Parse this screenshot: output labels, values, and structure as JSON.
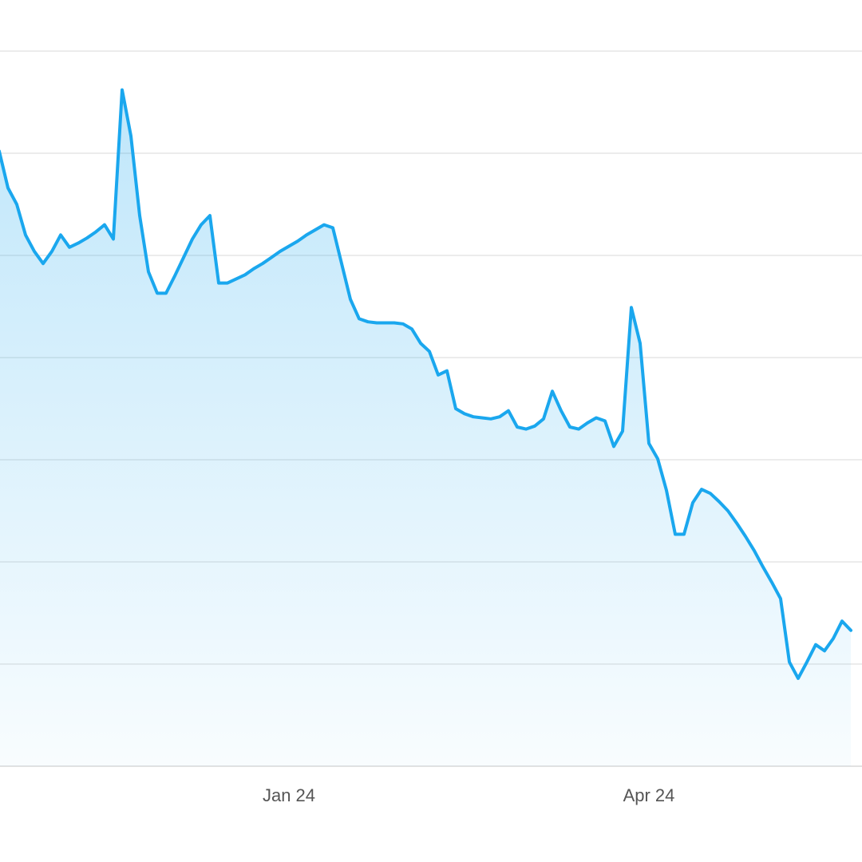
{
  "chart_data": {
    "type": "area",
    "categories": [
      null,
      null,
      null,
      null,
      null,
      null,
      null,
      null,
      null,
      null,
      null,
      null,
      null,
      null,
      null,
      null,
      null,
      null,
      null,
      null,
      null,
      null,
      null,
      null,
      null,
      null,
      null,
      null,
      null,
      null,
      null,
      null,
      null,
      "Jan 24",
      null,
      null,
      null,
      null,
      null,
      null,
      null,
      null,
      null,
      null,
      null,
      null,
      null,
      null,
      null,
      null,
      null,
      null,
      null,
      null,
      null,
      null,
      null,
      null,
      null,
      null,
      null,
      null,
      null,
      null,
      null,
      null,
      null,
      null,
      null,
      null,
      null,
      null,
      null,
      null,
      "Apr 24",
      null,
      null,
      null,
      null,
      null,
      null,
      null,
      null,
      null,
      null,
      null,
      null,
      null,
      null,
      null,
      null,
      null,
      null,
      null,
      null,
      null,
      null,
      null
    ],
    "series": [
      {
        "color": "#1aa7ee",
        "values": [
          6.02,
          5.66,
          5.5,
          5.2,
          5.04,
          4.92,
          5.04,
          5.2,
          5.08,
          5.12,
          5.17,
          5.23,
          5.3,
          5.16,
          6.62,
          6.17,
          5.39,
          4.84,
          4.63,
          4.63,
          4.8,
          4.98,
          5.16,
          5.3,
          5.39,
          4.73,
          4.73,
          4.77,
          4.81,
          4.87,
          4.92,
          4.98,
          5.04,
          5.09,
          5.14,
          5.2,
          5.25,
          5.3,
          5.27,
          4.92,
          4.57,
          4.38,
          4.35,
          4.34,
          4.34,
          4.34,
          4.33,
          4.28,
          4.14,
          4.06,
          3.83,
          3.87,
          3.5,
          3.45,
          3.42,
          3.41,
          3.4,
          3.42,
          3.48,
          3.32,
          3.3,
          3.33,
          3.4,
          3.67,
          3.48,
          3.32,
          3.3,
          3.36,
          3.41,
          3.38,
          3.13,
          3.28,
          4.49,
          4.14,
          3.16,
          3.01,
          2.7,
          2.27,
          2.27,
          2.58,
          2.71,
          2.67,
          2.59,
          2.5,
          2.38,
          2.25,
          2.11,
          1.95,
          1.8,
          1.64,
          1.02,
          0.86,
          1.02,
          1.19,
          1.13,
          1.25,
          1.42,
          1.33
        ]
      }
    ],
    "ylim": [
      0,
      7
    ],
    "yticks": [
      0,
      1,
      2,
      3,
      4,
      5,
      6,
      7
    ],
    "grid": true
  }
}
